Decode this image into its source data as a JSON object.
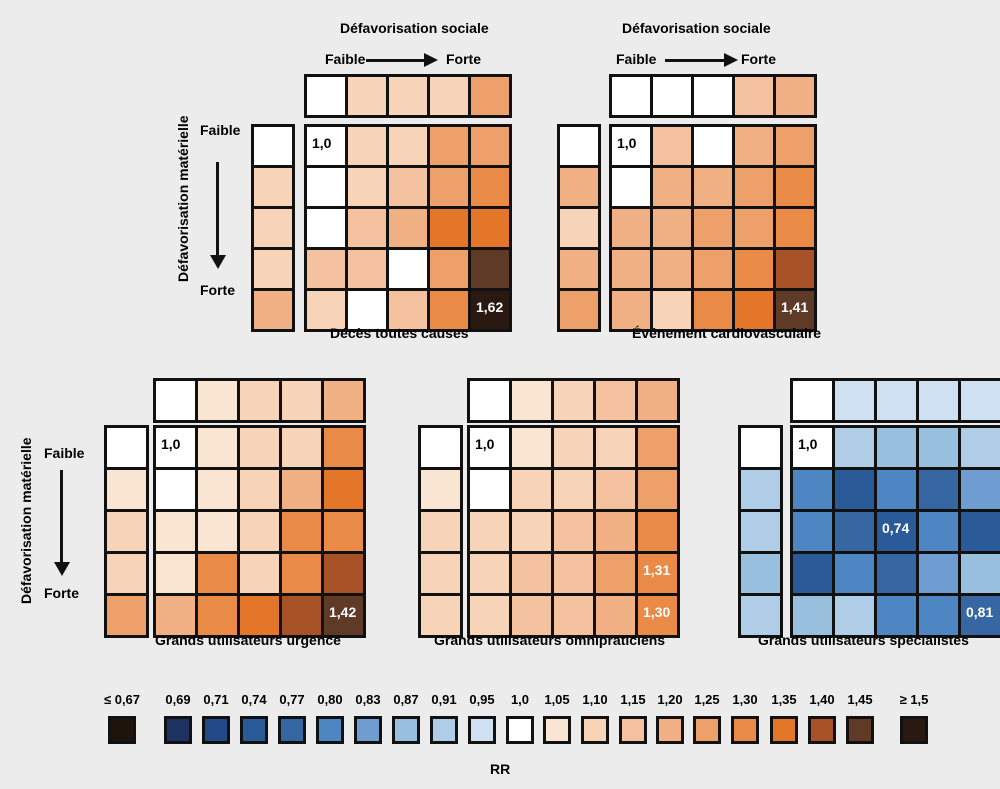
{
  "colors": {
    "cA": "#1e140c",
    "b069": "#1d3260",
    "b071": "#234a86",
    "b074": "#2b5a98",
    "b077": "#3667a3",
    "b080": "#4e86c3",
    "b083": "#6f9dd1",
    "b087": "#99bfdf",
    "b091": "#afcde6",
    "b095": "#cfe0f2",
    "w100": "#ffffff",
    "o105": "#fae4d2",
    "o110": "#f7d3b8",
    "o115": "#f4c29f",
    "o120": "#f0b084",
    "o125": "#eda06a",
    "o130": "#e98a47",
    "o135": "#e4762a",
    "o140": "#a85227",
    "o145": "#5e3a27",
    "o150": "#2a1911"
  },
  "header": {
    "social_label": "Défavorisation sociale",
    "faible": "Faible",
    "forte": "Forte",
    "material_label": "Défavorisation matérielle"
  },
  "panels": [
    {
      "caption": "Décès toutes causes",
      "top": [
        "w100",
        "o110",
        "o110",
        "o110",
        "o125"
      ],
      "left": [
        "w100",
        "o110",
        "o110",
        "o110",
        "o120"
      ],
      "grid": [
        [
          "w100",
          "o110",
          "o110",
          "o125",
          "o125"
        ],
        [
          "w100",
          "o110",
          "o115",
          "o125",
          "o130"
        ],
        [
          "w100",
          "o115",
          "o120",
          "o135",
          "o135"
        ],
        [
          "o115",
          "o115",
          "w100",
          "o125",
          "o145"
        ],
        [
          "o110",
          "w100",
          "o115",
          "o130",
          "o150"
        ]
      ],
      "ref_label": "1,0",
      "value_label": "1,62",
      "value_pos": [
        4,
        4
      ]
    },
    {
      "caption": "Événement cardiovasculaire",
      "top": [
        "w100",
        "w100",
        "w100",
        "o115",
        "o120"
      ],
      "left": [
        "w100",
        "o120",
        "o110",
        "o120",
        "o125"
      ],
      "grid": [
        [
          "w100",
          "o115",
          "w100",
          "o120",
          "o125"
        ],
        [
          "w100",
          "o120",
          "o120",
          "o125",
          "o130"
        ],
        [
          "o120",
          "o120",
          "o125",
          "o125",
          "o130"
        ],
        [
          "o120",
          "o120",
          "o125",
          "o130",
          "o140"
        ],
        [
          "o120",
          "o110",
          "o130",
          "o135",
          "o145"
        ]
      ],
      "ref_label": "1,0",
      "value_label": "1,41",
      "value_pos": [
        4,
        4
      ]
    },
    {
      "caption": "Grands utilisateurs urgence",
      "top": [
        "w100",
        "o105",
        "o110",
        "o110",
        "o120"
      ],
      "left": [
        "w100",
        "o105",
        "o110",
        "o110",
        "o125"
      ],
      "grid": [
        [
          "w100",
          "o105",
          "o110",
          "o110",
          "o130"
        ],
        [
          "w100",
          "o105",
          "o110",
          "o120",
          "o135"
        ],
        [
          "o105",
          "o105",
          "o110",
          "o130",
          "o130"
        ],
        [
          "o105",
          "o130",
          "o110",
          "o130",
          "o140"
        ],
        [
          "o120",
          "o130",
          "o135",
          "o140",
          "o145"
        ]
      ],
      "ref_label": "1,0",
      "value_label": "1,42",
      "value_pos": [
        4,
        4
      ]
    },
    {
      "caption": "Grands utilisateurs omnipraticiens",
      "top": [
        "w100",
        "o105",
        "o110",
        "o115",
        "o120"
      ],
      "left": [
        "w100",
        "o105",
        "o110",
        "o110",
        "o110"
      ],
      "grid": [
        [
          "w100",
          "o105",
          "o110",
          "o110",
          "o125"
        ],
        [
          "w100",
          "o110",
          "o110",
          "o115",
          "o125"
        ],
        [
          "o110",
          "o110",
          "o115",
          "o120",
          "o130"
        ],
        [
          "o110",
          "o115",
          "o115",
          "o125",
          "o130"
        ],
        [
          "o110",
          "o115",
          "o115",
          "o120",
          "o130"
        ]
      ],
      "ref_label": "1,0",
      "value_label_a": "1,31",
      "value_label_b": "1,30"
    },
    {
      "caption": "Grands utilisateurs spécialistes",
      "top": [
        "w100",
        "b095",
        "b095",
        "b095",
        "b095"
      ],
      "left": [
        "w100",
        "b091",
        "b091",
        "b087",
        "b091"
      ],
      "grid": [
        [
          "w100",
          "b091",
          "b087",
          "b087",
          "b091"
        ],
        [
          "b080",
          "b074",
          "b080",
          "b077",
          "b083"
        ],
        [
          "b080",
          "b077",
          "b074",
          "b080",
          "b074"
        ],
        [
          "b074",
          "b080",
          "b077",
          "b083",
          "b087"
        ],
        [
          "b087",
          "b091",
          "b080",
          "b080",
          "b077"
        ]
      ],
      "ref_label": "1,0",
      "value_label_a": "0,74",
      "value_label_b": "0,81"
    }
  ],
  "legend": {
    "title": "RR",
    "items": [
      {
        "label": "≤ 0,67",
        "color": "cA"
      },
      {
        "label": "0,69",
        "color": "b069"
      },
      {
        "label": "0,71",
        "color": "b071"
      },
      {
        "label": "0,74",
        "color": "b074"
      },
      {
        "label": "0,77",
        "color": "b077"
      },
      {
        "label": "0,80",
        "color": "b080"
      },
      {
        "label": "0,83",
        "color": "b083"
      },
      {
        "label": "0,87",
        "color": "b087"
      },
      {
        "label": "0,91",
        "color": "b091"
      },
      {
        "label": "0,95",
        "color": "b095"
      },
      {
        "label": "1,0",
        "color": "w100"
      },
      {
        "label": "1,05",
        "color": "o105"
      },
      {
        "label": "1,10",
        "color": "o110"
      },
      {
        "label": "1,15",
        "color": "o115"
      },
      {
        "label": "1,20",
        "color": "o120"
      },
      {
        "label": "1,25",
        "color": "o125"
      },
      {
        "label": "1,30",
        "color": "o130"
      },
      {
        "label": "1,35",
        "color": "o135"
      },
      {
        "label": "1,40",
        "color": "o140"
      },
      {
        "label": "1,45",
        "color": "o145"
      },
      {
        "label": "≥ 1,5",
        "color": "o150"
      }
    ]
  }
}
